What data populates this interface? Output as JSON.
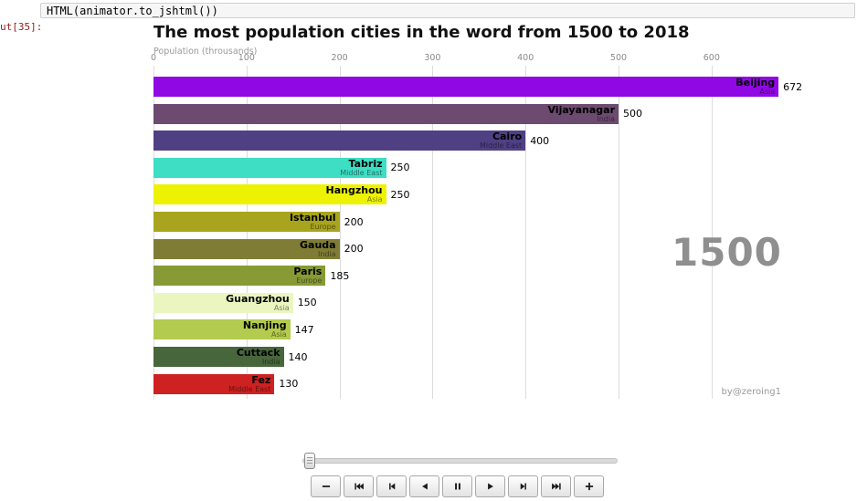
{
  "notebook": {
    "code_cell": "HTML(animator.to_jshtml())",
    "out_prompt": "ut[35]:"
  },
  "chart": {
    "credit": "by@zeroing1",
    "chart_data": {
      "type": "bar",
      "orientation": "horizontal",
      "title": "The most population cities in the word from 1500 to 2018",
      "xlabel": "Population (throusands)",
      "ylabel": "",
      "xlim": [
        0,
        700
      ],
      "x_ticks": [
        0,
        100,
        200,
        300,
        400,
        500,
        600
      ],
      "grid": true,
      "year": "1500",
      "bars": [
        {
          "city": "Beijing",
          "group": "Asia",
          "value": 672,
          "color": "#9008e4"
        },
        {
          "city": "Vijayanagar",
          "group": "India",
          "value": 500,
          "color": "#6d4a70"
        },
        {
          "city": "Cairo",
          "group": "Middle East",
          "value": 400,
          "color": "#4f4084"
        },
        {
          "city": "Tabriz",
          "group": "Middle East",
          "value": 250,
          "color": "#3ddec4"
        },
        {
          "city": "Hangzhou",
          "group": "Asia",
          "value": 250,
          "color": "#edf202"
        },
        {
          "city": "Istanbul",
          "group": "Europe",
          "value": 200,
          "color": "#a8a41e"
        },
        {
          "city": "Gauda",
          "group": "India",
          "value": 200,
          "color": "#7f7d35"
        },
        {
          "city": "Paris",
          "group": "Europe",
          "value": 185,
          "color": "#879a36"
        },
        {
          "city": "Guangzhou",
          "group": "Asia",
          "value": 150,
          "color": "#eaf6c0"
        },
        {
          "city": "Nanjing",
          "group": "Asia",
          "value": 147,
          "color": "#b3cb4e"
        },
        {
          "city": "Cuttack",
          "group": "India",
          "value": 140,
          "color": "#47663c"
        },
        {
          "city": "Fez",
          "group": "Middle East",
          "value": 130,
          "color": "#ce2121"
        }
      ]
    }
  },
  "player": {
    "buttons": [
      {
        "name": "slower",
        "icon": "minus"
      },
      {
        "name": "first-frame",
        "icon": "fast-backward"
      },
      {
        "name": "previous-frame",
        "icon": "step-backward"
      },
      {
        "name": "play-reverse",
        "icon": "play-reverse"
      },
      {
        "name": "pause",
        "icon": "pause"
      },
      {
        "name": "play",
        "icon": "play"
      },
      {
        "name": "next-frame",
        "icon": "step-forward"
      },
      {
        "name": "last-frame",
        "icon": "fast-forward"
      },
      {
        "name": "faster",
        "icon": "plus"
      }
    ]
  }
}
